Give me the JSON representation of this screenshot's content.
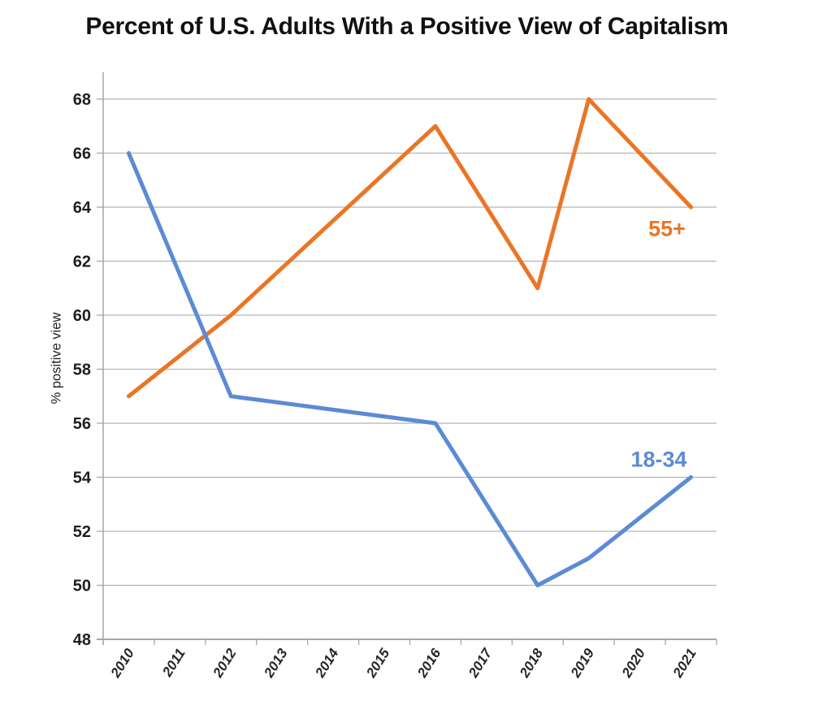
{
  "title": "Percent of U.S. Adults With a Positive View of Capitalism",
  "chart_data": {
    "type": "line",
    "title": "Percent of U.S. Adults With a Positive View of Capitalism",
    "xlabel": "",
    "ylabel": "% positive view",
    "categories": [
      "2010",
      "2011",
      "2012",
      "2013",
      "2014",
      "2015",
      "2016",
      "2017",
      "2018",
      "2019",
      "2020",
      "2021"
    ],
    "ylim": [
      48,
      69
    ],
    "yticks": [
      48,
      50,
      52,
      54,
      56,
      58,
      60,
      62,
      64,
      66,
      68
    ],
    "grid": true,
    "legend_position": "inline-labels-right",
    "series": [
      {
        "name": "55+",
        "color": "#E97626",
        "x": [
          2010,
          2012,
          2016,
          2018,
          2019,
          2021
        ],
        "values": [
          57,
          60,
          67,
          61,
          68,
          64
        ]
      },
      {
        "name": "18-34",
        "color": "#5B8BD4",
        "x": [
          2010,
          2012,
          2016,
          2018,
          2019,
          2021
        ],
        "values": [
          66,
          57,
          56,
          50,
          51,
          54
        ]
      }
    ],
    "colors": {
      "gridline": "#B5B5B5",
      "axis": "#A6A6A6",
      "tick_label": "#1f1f1f",
      "title": "#111111"
    }
  }
}
